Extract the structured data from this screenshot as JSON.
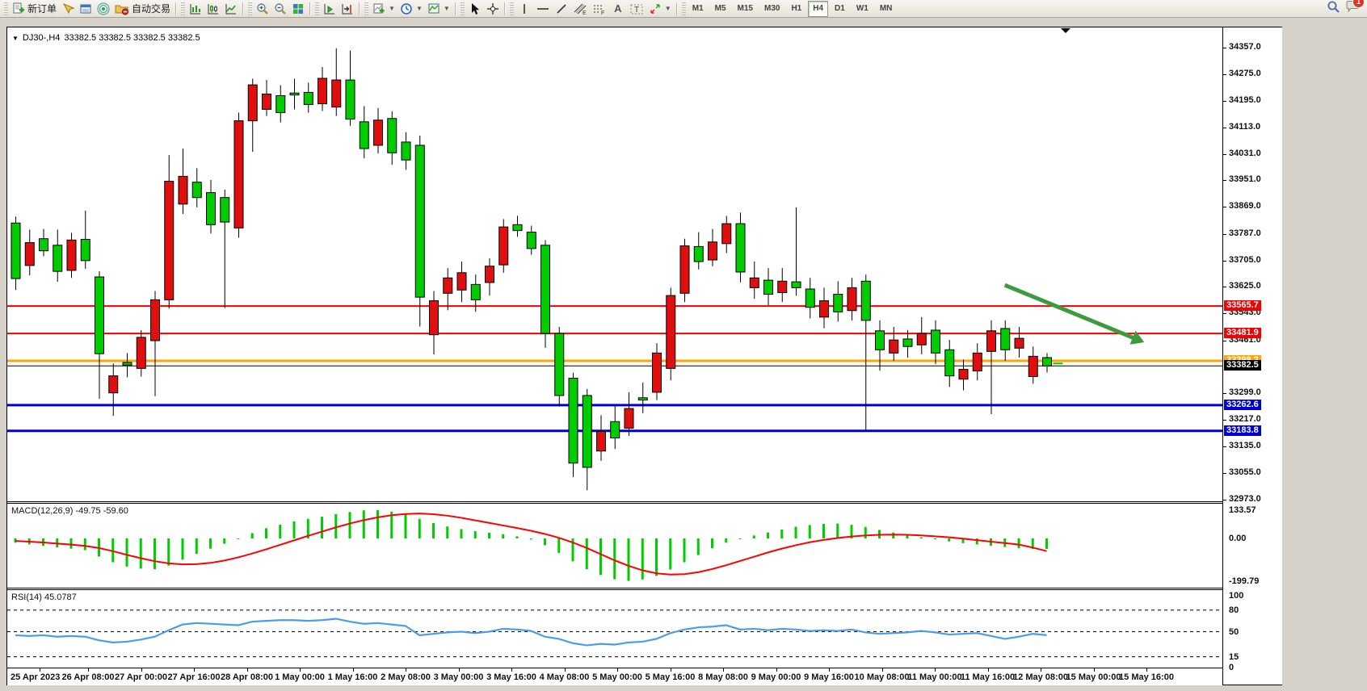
{
  "window": {
    "symbol_title": "DJ30-,H4",
    "quotes": "33382.5 33382.5 33382.5 33382.5"
  },
  "toolbar": {
    "new_order_label": "新订单",
    "autotrade_label": "自动交易",
    "timeframes": [
      "M1",
      "M5",
      "M15",
      "M30",
      "H1",
      "H4",
      "D1",
      "W1",
      "MN"
    ],
    "active_timeframe": "H4",
    "chat_badge": "1",
    "icons": [
      "new-order-icon",
      "pointer-icon",
      "market-window-icon",
      "signal-icon",
      "autotrade-icon",
      "bar-chart-icon",
      "candlestick-icon",
      "line-chart-icon",
      "zoom-in-icon",
      "zoom-out-icon",
      "tile-windows-icon",
      "auto-scroll-icon",
      "chart-shift-icon",
      "indicators-icon",
      "periods-icon",
      "templates-icon",
      "cursor-icon",
      "crosshair-icon",
      "vertical-line-icon",
      "horizontal-line-icon",
      "trendline-icon",
      "channel-icon",
      "fibonacci-icon",
      "text-icon",
      "text-label-icon",
      "arrows-icon",
      "search-icon",
      "chat-icon"
    ],
    "tool_glyphs": {
      "channel_sub": "E",
      "fibo_sub": "F",
      "text": "A",
      "label": "T"
    }
  },
  "price_axis": {
    "ticks": [
      {
        "label": "34357.0",
        "price": 34357
      },
      {
        "label": "34275.0",
        "price": 34275
      },
      {
        "label": "34195.0",
        "price": 34195
      },
      {
        "label": "34113.0",
        "price": 34113
      },
      {
        "label": "34031.0",
        "price": 34031
      },
      {
        "label": "33951.0",
        "price": 33951
      },
      {
        "label": "33869.0",
        "price": 33869
      },
      {
        "label": "33787.0",
        "price": 33787
      },
      {
        "label": "33705.0",
        "price": 33705
      },
      {
        "label": "33625.0",
        "price": 33625
      },
      {
        "label": "33543.0",
        "price": 33543
      },
      {
        "label": "33461.0",
        "price": 33461
      },
      {
        "label": "33299.0",
        "price": 33299
      },
      {
        "label": "33217.0",
        "price": 33217
      },
      {
        "label": "33135.0",
        "price": 33135
      },
      {
        "label": "33055.0",
        "price": 33055
      },
      {
        "label": "32973.0",
        "price": 32973
      }
    ],
    "badges": [
      {
        "label": "33565.7",
        "price": 33565.7,
        "bg": "#f50000"
      },
      {
        "label": "33481.9",
        "price": 33481.9,
        "bg": "#f50000"
      },
      {
        "label": "33398.2",
        "price": 33398.2,
        "bg": "#ffa500"
      },
      {
        "label": "33382.5",
        "price": 33382.5,
        "bg": "#000000"
      },
      {
        "label": "33262.6",
        "price": 33262.6,
        "bg": "#0000d2"
      },
      {
        "label": "33183.8",
        "price": 33183.8,
        "bg": "#0000d2"
      }
    ]
  },
  "time_axis": {
    "labels": [
      "25 Apr 2023",
      "26 Apr 08:00",
      "27 Apr 00:00",
      "27 Apr 16:00",
      "28 Apr 08:00",
      "1 May 00:00",
      "1 May 16:00",
      "2 May 08:00",
      "3 May 00:00",
      "3 May 16:00",
      "4 May 08:00",
      "5 May 00:00",
      "5 May 16:00",
      "8 May 08:00",
      "9 May 00:00",
      "9 May 16:00",
      "10 May 08:00",
      "11 May 00:00",
      "11 May 16:00",
      "12 May 08:00",
      "15 May 00:00",
      "15 May 16:00"
    ]
  },
  "indicators": {
    "macd": {
      "label": "MACD(12,26,9) -49.75 -59.60",
      "scale": [
        {
          "label": "133.57",
          "v": 133.57
        },
        {
          "label": "0.00",
          "v": 0
        },
        {
          "label": "-199.79",
          "v": -199.79
        }
      ]
    },
    "rsi": {
      "label": "RSI(14) 45.0787",
      "scale": [
        {
          "label": "100",
          "v": 100
        },
        {
          "label": "80",
          "v": 80
        },
        {
          "label": "50",
          "v": 50
        },
        {
          "label": "15",
          "v": 15
        },
        {
          "label": "0",
          "v": 0
        }
      ]
    }
  },
  "chart_data": {
    "type": "candlestick",
    "symbol": "DJ30-",
    "timeframe": "H4",
    "ylim": [
      32973,
      34357
    ],
    "up_color": "#e00f0f",
    "down_color": "#00cc00",
    "ohlc": [
      [
        33820,
        33840,
        33615,
        33650
      ],
      [
        33690,
        33800,
        33660,
        33760
      ],
      [
        33772,
        33802,
        33718,
        33735
      ],
      [
        33752,
        33800,
        33640,
        33672
      ],
      [
        33675,
        33790,
        33652,
        33768
      ],
      [
        33770,
        33858,
        33680,
        33705
      ],
      [
        33655,
        33672,
        33282,
        33420
      ],
      [
        33300,
        33390,
        33230,
        33352
      ],
      [
        33393,
        33422,
        33348,
        33385
      ],
      [
        33375,
        33492,
        33350,
        33470
      ],
      [
        33460,
        33612,
        33290,
        33585
      ],
      [
        33585,
        34028,
        33558,
        33948
      ],
      [
        33878,
        34048,
        33848,
        33963
      ],
      [
        33945,
        33988,
        33868,
        33898
      ],
      [
        33913,
        33952,
        33788,
        33815
      ],
      [
        33898,
        33922,
        33560,
        33823
      ],
      [
        33805,
        34158,
        33775,
        34133
      ],
      [
        34133,
        34262,
        34038,
        34243
      ],
      [
        34168,
        34258,
        34148,
        34215
      ],
      [
        34210,
        34242,
        34128,
        34158
      ],
      [
        34218,
        34262,
        34168,
        34212
      ],
      [
        34220,
        34250,
        34158,
        34183
      ],
      [
        34185,
        34298,
        34163,
        34263
      ],
      [
        34175,
        34355,
        34148,
        34258
      ],
      [
        34258,
        34348,
        34118,
        34138
      ],
      [
        34130,
        34178,
        34018,
        34048
      ],
      [
        34058,
        34172,
        34033,
        34135
      ],
      [
        34140,
        34162,
        33998,
        34035
      ],
      [
        34068,
        34098,
        33983,
        34013
      ],
      [
        34058,
        34088,
        33503,
        33593
      ],
      [
        33478,
        33612,
        33418,
        33582
      ],
      [
        33605,
        33682,
        33553,
        33652
      ],
      [
        33615,
        33702,
        33578,
        33668
      ],
      [
        33632,
        33662,
        33548,
        33585
      ],
      [
        33638,
        33712,
        33598,
        33688
      ],
      [
        33692,
        33832,
        33668,
        33808
      ],
      [
        33815,
        33842,
        33778,
        33797
      ],
      [
        33792,
        33812,
        33723,
        33742
      ],
      [
        33752,
        33768,
        33438,
        33482
      ],
      [
        33482,
        33502,
        33258,
        33292
      ],
      [
        33345,
        33362,
        33042,
        33085
      ],
      [
        33292,
        33312,
        33002,
        33072
      ],
      [
        33122,
        33232,
        33092,
        33182
      ],
      [
        33212,
        33262,
        33128,
        33162
      ],
      [
        33192,
        33302,
        33168,
        33252
      ],
      [
        33285,
        33332,
        33238,
        33278
      ],
      [
        33302,
        33452,
        33278,
        33422
      ],
      [
        33375,
        33622,
        33338,
        33598
      ],
      [
        33605,
        33772,
        33578,
        33750
      ],
      [
        33748,
        33792,
        33678,
        33702
      ],
      [
        33707,
        33802,
        33688,
        33762
      ],
      [
        33757,
        33842,
        33728,
        33818
      ],
      [
        33818,
        33852,
        33638,
        33670
      ],
      [
        33622,
        33702,
        33588,
        33652
      ],
      [
        33645,
        33682,
        33568,
        33602
      ],
      [
        33607,
        33682,
        33578,
        33642
      ],
      [
        33640,
        33868,
        33598,
        33622
      ],
      [
        33618,
        33652,
        33528,
        33562
      ],
      [
        33532,
        33622,
        33498,
        33582
      ],
      [
        33602,
        33642,
        33518,
        33548
      ],
      [
        33552,
        33652,
        33522,
        33622
      ],
      [
        33642,
        33662,
        33185,
        33522
      ],
      [
        33490,
        33522,
        33368,
        33432
      ],
      [
        33422,
        33502,
        33398,
        33462
      ],
      [
        33465,
        33492,
        33408,
        33442
      ],
      [
        33447,
        33532,
        33418,
        33482
      ],
      [
        33492,
        33522,
        33388,
        33422
      ],
      [
        33432,
        33462,
        33318,
        33352
      ],
      [
        33342,
        33402,
        33308,
        33372
      ],
      [
        33367,
        33452,
        33338,
        33422
      ],
      [
        33427,
        33522,
        33235,
        33490
      ],
      [
        33497,
        33522,
        33398,
        33432
      ],
      [
        33437,
        33502,
        33408,
        33467
      ],
      [
        33350,
        33442,
        33328,
        33412
      ],
      [
        33408,
        33422,
        33362,
        33382.5
      ]
    ],
    "hlines": [
      {
        "price": 33565.7,
        "color": "#f50000",
        "width": 2
      },
      {
        "price": 33481.9,
        "color": "#f50000",
        "width": 2
      },
      {
        "price": 33398.2,
        "color": "#ffa500",
        "width": 3
      },
      {
        "price": 33382.5,
        "color": "#000000",
        "width": 1
      },
      {
        "price": 33262.6,
        "color": "#0000d2",
        "width": 3
      },
      {
        "price": 33183.8,
        "color": "#0000d2",
        "width": 3
      }
    ],
    "arrow": {
      "from_bar": 71,
      "from_price": 33630,
      "to_bar": 81,
      "to_price": 33455,
      "color": "#3e9a3e"
    },
    "last_dash_price": 33390,
    "macd": {
      "ylim": [
        -199.79,
        133.57
      ],
      "histogram": [
        -20,
        -28,
        -35,
        -42,
        -48,
        -55,
        -85,
        -112,
        -132,
        -142,
        -145,
        -128,
        -100,
        -72,
        -48,
        -25,
        0,
        25,
        48,
        65,
        80,
        92,
        102,
        114,
        124,
        132,
        133.5,
        126,
        114,
        92,
        72,
        56,
        44,
        34,
        27,
        20,
        10,
        -5,
        -32,
        -68,
        -108,
        -145,
        -172,
        -192,
        -199.8,
        -193,
        -176,
        -146,
        -112,
        -78,
        -46,
        -20,
        0,
        14,
        28,
        42,
        55,
        63,
        68,
        70,
        64,
        54,
        40,
        28,
        16,
        6,
        -4,
        -14,
        -22,
        -28,
        -34,
        -40,
        -46,
        -50,
        -49.75
      ],
      "signal": [
        -12,
        -15,
        -19,
        -24,
        -29,
        -35,
        -45,
        -60,
        -77,
        -93,
        -107,
        -117,
        -122,
        -121,
        -115,
        -104,
        -89,
        -71,
        -51,
        -30,
        -9,
        12,
        32,
        52,
        70,
        86,
        99,
        109,
        115,
        117,
        114,
        107,
        97,
        85,
        73,
        61,
        49,
        36,
        21,
        3,
        -19,
        -45,
        -74,
        -103,
        -129,
        -150,
        -164,
        -170,
        -168,
        -159,
        -144,
        -126,
        -106,
        -86,
        -66,
        -48,
        -32,
        -18,
        -7,
        2,
        9,
        14,
        17,
        18,
        17,
        14,
        10,
        5,
        -1,
        -8,
        -15,
        -22,
        -29,
        -43,
        -59.6
      ],
      "current": "-49.75 -59.60"
    },
    "rsi": {
      "ylim": [
        0,
        100
      ],
      "levels": [
        80,
        50,
        15
      ],
      "values": [
        45,
        44,
        45,
        43,
        44,
        43,
        38,
        35,
        36,
        39,
        43,
        52,
        60,
        62,
        61,
        60,
        59,
        64,
        65,
        66,
        66,
        65,
        66,
        68,
        64,
        61,
        62,
        60,
        58,
        45,
        47,
        49,
        50,
        48,
        50,
        54,
        53,
        51,
        43,
        40,
        34,
        31,
        33,
        32,
        35,
        36,
        40,
        48,
        53,
        56,
        57,
        59,
        53,
        54,
        52,
        54,
        53,
        51,
        52,
        51,
        53,
        49,
        47,
        48,
        49,
        51,
        49,
        46,
        47,
        48,
        44,
        40,
        43,
        47,
        45.1
      ],
      "current": 45.0787
    }
  }
}
